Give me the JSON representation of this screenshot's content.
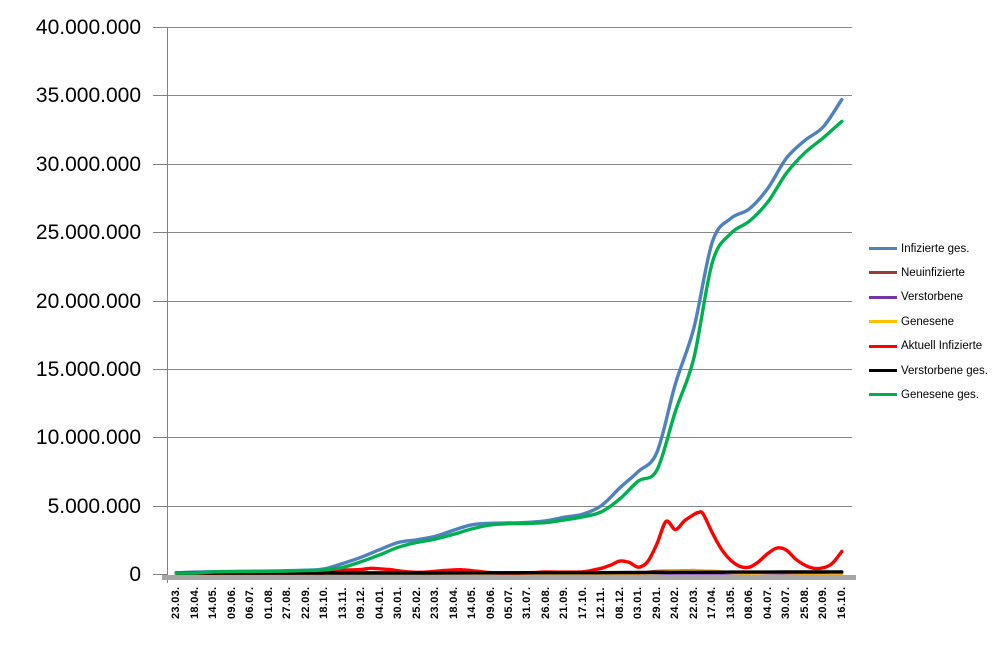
{
  "chart_data": {
    "type": "line",
    "title": "",
    "unit": "persons",
    "grid": true,
    "legend_position": "right",
    "colors": {
      "gridline": "#878787",
      "axis": "#808080",
      "axis_band": "#A6A6A6",
      "text": "#000000",
      "background": "#FFFFFF"
    },
    "categories": [
      "23.03.",
      "18.04.",
      "14.05.",
      "09.06.",
      "06.07.",
      "01.08.",
      "27.08.",
      "22.09.",
      "18.10.",
      "13.11.",
      "09.12.",
      "04.01.",
      "30.01.",
      "25.02.",
      "23.03.",
      "18.04.",
      "14.05.",
      "09.06.",
      "05.07.",
      "31.07.",
      "26.08.",
      "21.09.",
      "17.10.",
      "12.11.",
      "08.12.",
      "03.01.",
      "29.01.",
      "24.02.",
      "22.03.",
      "17.04.",
      "13.05.",
      "08.06.",
      "04.07.",
      "30.07.",
      "25.08.",
      "20.09.",
      "16.10."
    ],
    "y_axis": {
      "min": 0,
      "max": 40000000,
      "step": 5000000,
      "ticks": [
        {
          "label": "40.000.000",
          "value": 40000000
        },
        {
          "label": "35.000.000",
          "value": 35000000
        },
        {
          "label": "30.000.000",
          "value": 30000000
        },
        {
          "label": "25.000.000",
          "value": 25000000
        },
        {
          "label": "20.000.000",
          "value": 20000000
        },
        {
          "label": "15.000.000",
          "value": 15000000
        },
        {
          "label": "10.000.000",
          "value": 10000000
        },
        {
          "label": "5.000.000",
          "value": 5000000
        },
        {
          "label": "0",
          "value": 0
        }
      ]
    },
    "series": [
      {
        "name": "Infizierte ges.",
        "color": "#4F81BD",
        "values": [
          30000,
          140000,
          170000,
          190000,
          200000,
          210000,
          240000,
          280000,
          370000,
          770000,
          1220000,
          1780000,
          2300000,
          2500000,
          2750000,
          3200000,
          3600000,
          3710000,
          3730000,
          3770000,
          3890000,
          4150000,
          4380000,
          5000000,
          6300000,
          7500000,
          8900000,
          13900000,
          18000000,
          24300000,
          26000000,
          26700000,
          28200000,
          30400000,
          31700000,
          32700000,
          34700000
        ]
      },
      {
        "name": "Neuinfizierte",
        "color": "#9E3B33",
        "values": [
          4000,
          2000,
          1000,
          300,
          400,
          800,
          1500,
          2000,
          7000,
          23000,
          29000,
          12000,
          12000,
          9000,
          16000,
          25000,
          12000,
          3000,
          800,
          2000,
          12000,
          8000,
          10000,
          48000,
          70000,
          30000,
          180000,
          210000,
          250000,
          165000,
          90000,
          65000,
          135000,
          90000,
          45000,
          50000,
          75000
        ]
      },
      {
        "name": "Verstorbene",
        "color": "#7436A4",
        "values": [
          100,
          300,
          100,
          100,
          50,
          30,
          20,
          30,
          50,
          200,
          500,
          900,
          900,
          400,
          250,
          300,
          200,
          100,
          50,
          30,
          30,
          60,
          80,
          200,
          400,
          400,
          250,
          200,
          300,
          300,
          150,
          100,
          100,
          150,
          100,
          100,
          150
        ]
      },
      {
        "name": "Genesene",
        "color": "#FFC000",
        "values": [
          1000,
          3000,
          2000,
          1000,
          500,
          800,
          1200,
          1500,
          4000,
          12000,
          22000,
          19000,
          15000,
          8000,
          11000,
          19000,
          18000,
          6000,
          2000,
          1000,
          7000,
          9000,
          9000,
          25000,
          55000,
          45000,
          100000,
          180000,
          230000,
          210000,
          110000,
          60000,
          100000,
          110000,
          60000,
          45000,
          60000
        ]
      },
      {
        "name": "Aktuell Infizierte",
        "color": "#FF0000",
        "x": [
          0,
          0.5,
          1,
          1.5,
          2,
          3,
          4,
          5,
          6,
          7,
          8,
          9,
          9.5,
          10,
          10.5,
          11,
          11.5,
          12,
          12.5,
          13,
          13.5,
          14,
          14.5,
          15,
          15.5,
          16,
          16.5,
          17,
          17.5,
          18,
          18.5,
          19,
          19.5,
          20,
          21,
          22,
          22.5,
          23,
          23.5,
          24,
          24.5,
          25,
          25.5,
          26,
          26.5,
          27,
          27.5,
          28,
          28.25,
          28.5,
          29,
          29.5,
          30,
          30.5,
          31,
          31.5,
          32,
          32.5,
          33,
          33.5,
          34,
          34.5,
          35,
          35.5,
          36
        ],
        "values": [
          25000,
          55000,
          48000,
          25000,
          15000,
          9000,
          8000,
          10000,
          17000,
          21000,
          70000,
          280000,
          300000,
          330000,
          420000,
          380000,
          330000,
          240000,
          160000,
          125000,
          140000,
          200000,
          260000,
          300000,
          310000,
          240000,
          170000,
          100000,
          60000,
          35000,
          45000,
          90000,
          120000,
          145000,
          140000,
          160000,
          270000,
          420000,
          650000,
          950000,
          850000,
          500000,
          900000,
          2200000,
          3850000,
          3250000,
          3900000,
          4350000,
          4500000,
          4400000,
          3000000,
          1800000,
          1000000,
          550000,
          500000,
          900000,
          1500000,
          1900000,
          1750000,
          1100000,
          650000,
          420000,
          450000,
          800000,
          1650000
        ]
      },
      {
        "name": "Verstorbene ges.",
        "color": "#000000",
        "values": [
          1000,
          4000,
          8000,
          9000,
          9000,
          9200,
          9300,
          9500,
          9800,
          12000,
          20000,
          35000,
          56000,
          69000,
          75000,
          81000,
          86000,
          89000,
          91000,
          92000,
          92000,
          93000,
          95000,
          97000,
          104000,
          112000,
          118000,
          122000,
          127000,
          133000,
          137000,
          140000,
          142000,
          144000,
          147000,
          149000,
          151000
        ]
      },
      {
        "name": "Genesene ges.",
        "color": "#00B050",
        "values": [
          10000,
          80000,
          150000,
          170000,
          180000,
          195000,
          215000,
          250000,
          300000,
          480000,
          900000,
          1400000,
          1950000,
          2300000,
          2550000,
          2900000,
          3300000,
          3580000,
          3680000,
          3700000,
          3760000,
          3950000,
          4180000,
          4550000,
          5500000,
          6800000,
          7600000,
          11900000,
          15800000,
          22800000,
          24900000,
          25800000,
          27200000,
          29300000,
          30800000,
          31900000,
          33100000
        ]
      }
    ]
  }
}
